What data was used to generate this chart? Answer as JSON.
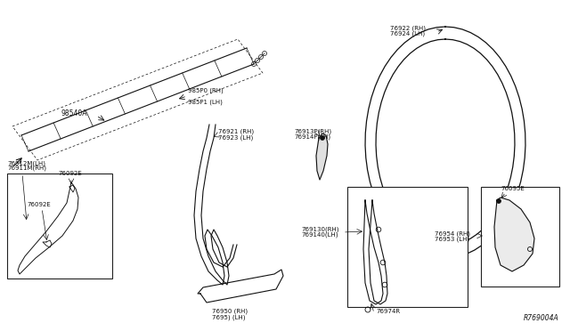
{
  "bg_color": "#ffffff",
  "diagram_id": "R769004A",
  "labels": {
    "airbag_module": "98540A",
    "airbag_rh": "985P0 (RH)",
    "airbag_lh": "985P1 (LH)",
    "pillar_trim_rh": "76921 (RH)",
    "pillar_trim_lh": "76923 (LH)",
    "clip1_rh": "76913P(RH)",
    "clip1_lh": "76914P(LH)",
    "seal_rh": "76922 (RH)",
    "seal_lh": "76924 (LH)",
    "b_pillar_rh": "769130(RH)",
    "b_pillar_lh": "769140(LH)",
    "sill_rh": "76950 (RH)",
    "sill_lh": "7695) (LH)",
    "clip2_top": "76092E",
    "clip2_bot": "76092E",
    "pillar_lower_rh": "76911M(RH)",
    "pillar_lower_lh": "76912M(LH)",
    "clip3_rh": "76954 (RH)",
    "clip3_lh": "76953 (LH)",
    "clip4": "76095E",
    "grommet": "76974R"
  },
  "font_size": 5.0,
  "line_color": "#111111",
  "box_line_color": "#222222"
}
